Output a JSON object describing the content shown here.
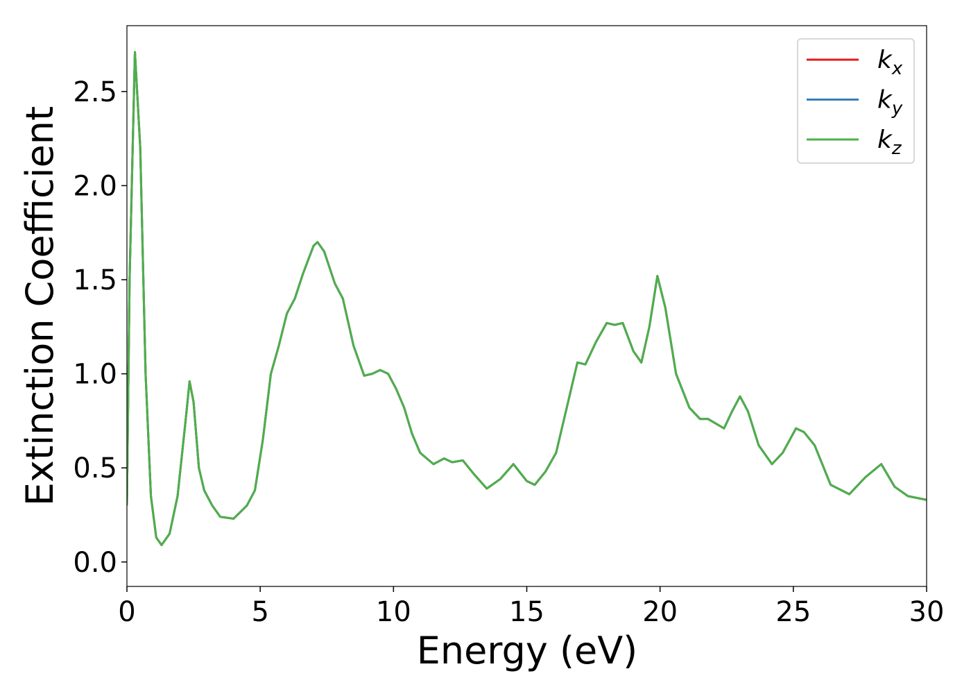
{
  "chart_data": {
    "type": "line",
    "xlabel": "Energy (eV)",
    "ylabel": "Extinction Coefficient",
    "x": [
      0,
      0.1,
      0.3,
      0.5,
      0.7,
      0.9,
      1.1,
      1.3,
      1.6,
      1.9,
      2.2,
      2.35,
      2.5,
      2.7,
      2.9,
      3.2,
      3.5,
      4.0,
      4.5,
      4.8,
      5.1,
      5.4,
      5.7,
      6.0,
      6.3,
      6.6,
      7.0,
      7.15,
      7.4,
      7.8,
      8.1,
      8.5,
      8.9,
      9.2,
      9.5,
      9.8,
      10.1,
      10.4,
      10.7,
      11.0,
      11.5,
      11.9,
      12.2,
      12.6,
      13.0,
      13.5,
      14.0,
      14.5,
      15.0,
      15.3,
      15.7,
      16.1,
      16.5,
      16.9,
      17.2,
      17.6,
      18.0,
      18.3,
      18.6,
      19.0,
      19.3,
      19.6,
      19.9,
      20.2,
      20.6,
      21.1,
      21.5,
      21.8,
      22.4,
      22.7,
      23.0,
      23.3,
      23.7,
      24.2,
      24.6,
      25.1,
      25.4,
      25.8,
      26.4,
      27.1,
      27.7,
      28.3,
      28.8,
      29.3,
      30
    ],
    "series": [
      {
        "name": "kx",
        "color": "#e41a1c",
        "values": [
          0.3,
          1.5,
          2.71,
          2.2,
          1.0,
          0.35,
          0.13,
          0.09,
          0.15,
          0.35,
          0.75,
          0.96,
          0.85,
          0.5,
          0.38,
          0.3,
          0.24,
          0.23,
          0.3,
          0.38,
          0.65,
          1.0,
          1.15,
          1.32,
          1.4,
          1.53,
          1.68,
          1.7,
          1.65,
          1.48,
          1.4,
          1.15,
          0.99,
          1.0,
          1.02,
          1.0,
          0.92,
          0.82,
          0.68,
          0.58,
          0.52,
          0.55,
          0.53,
          0.54,
          0.47,
          0.39,
          0.44,
          0.52,
          0.43,
          0.41,
          0.48,
          0.58,
          0.82,
          1.06,
          1.05,
          1.17,
          1.27,
          1.26,
          1.27,
          1.12,
          1.06,
          1.25,
          1.52,
          1.35,
          1.0,
          0.82,
          0.76,
          0.76,
          0.71,
          0.8,
          0.88,
          0.8,
          0.62,
          0.52,
          0.58,
          0.71,
          0.69,
          0.62,
          0.41,
          0.36,
          0.45,
          0.52,
          0.4,
          0.35,
          0.33
        ]
      },
      {
        "name": "ky",
        "color": "#377eb8",
        "values": [
          0.3,
          1.5,
          2.71,
          2.2,
          1.0,
          0.35,
          0.13,
          0.09,
          0.15,
          0.35,
          0.75,
          0.96,
          0.85,
          0.5,
          0.38,
          0.3,
          0.24,
          0.23,
          0.3,
          0.38,
          0.65,
          1.0,
          1.15,
          1.32,
          1.4,
          1.53,
          1.68,
          1.7,
          1.65,
          1.48,
          1.4,
          1.15,
          0.99,
          1.0,
          1.02,
          1.0,
          0.92,
          0.82,
          0.68,
          0.58,
          0.52,
          0.55,
          0.53,
          0.54,
          0.47,
          0.39,
          0.44,
          0.52,
          0.43,
          0.41,
          0.48,
          0.58,
          0.82,
          1.06,
          1.05,
          1.17,
          1.27,
          1.26,
          1.27,
          1.12,
          1.06,
          1.25,
          1.52,
          1.35,
          1.0,
          0.82,
          0.76,
          0.76,
          0.71,
          0.8,
          0.88,
          0.8,
          0.62,
          0.52,
          0.58,
          0.71,
          0.69,
          0.62,
          0.41,
          0.36,
          0.45,
          0.52,
          0.4,
          0.35,
          0.33
        ]
      },
      {
        "name": "kz",
        "color": "#4daf4a",
        "values": [
          0.3,
          1.5,
          2.71,
          2.2,
          1.0,
          0.35,
          0.13,
          0.09,
          0.15,
          0.35,
          0.75,
          0.96,
          0.85,
          0.5,
          0.38,
          0.3,
          0.24,
          0.23,
          0.3,
          0.38,
          0.65,
          1.0,
          1.15,
          1.32,
          1.4,
          1.53,
          1.68,
          1.7,
          1.65,
          1.48,
          1.4,
          1.15,
          0.99,
          1.0,
          1.02,
          1.0,
          0.92,
          0.82,
          0.68,
          0.58,
          0.52,
          0.55,
          0.53,
          0.54,
          0.47,
          0.39,
          0.44,
          0.52,
          0.43,
          0.41,
          0.48,
          0.58,
          0.82,
          1.06,
          1.05,
          1.17,
          1.27,
          1.26,
          1.27,
          1.12,
          1.06,
          1.25,
          1.52,
          1.35,
          1.0,
          0.82,
          0.76,
          0.76,
          0.71,
          0.8,
          0.88,
          0.8,
          0.62,
          0.52,
          0.58,
          0.71,
          0.69,
          0.62,
          0.41,
          0.36,
          0.45,
          0.52,
          0.4,
          0.35,
          0.33
        ]
      }
    ],
    "xlim": [
      0,
      30
    ],
    "xticks": [
      0,
      5,
      10,
      15,
      20,
      25,
      30
    ],
    "ylim": [
      -0.13,
      2.85
    ],
    "yticks": [
      {
        "value": 0,
        "label": "0.0"
      },
      0.5,
      {
        "value": 1,
        "label": "1.0"
      },
      1.5,
      {
        "value": 2,
        "label": "2.0"
      },
      2.5
    ],
    "legend": "upper right",
    "grid": false
  }
}
